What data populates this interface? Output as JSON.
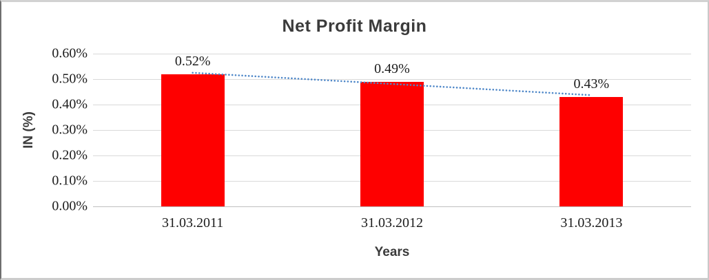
{
  "chart_data": {
    "type": "bar",
    "title": "Net Profit Margin",
    "xlabel": "Years",
    "ylabel": "IN (%)",
    "categories": [
      "31.03.2011",
      "31.03.2012",
      "31.03.2013"
    ],
    "values": [
      0.52,
      0.49,
      0.43
    ],
    "data_labels": [
      "0.52%",
      "0.49%",
      "0.43%"
    ],
    "yticks": [
      "0.00%",
      "0.10%",
      "0.20%",
      "0.30%",
      "0.40%",
      "0.50%",
      "0.60%"
    ],
    "ytick_values": [
      0.0,
      0.1,
      0.2,
      0.3,
      0.4,
      0.5,
      0.6
    ],
    "ylim": [
      0,
      0.6
    ],
    "grid": true,
    "legend": "none",
    "bar_color": "#fe0000",
    "gridline_color": "#d9d9d9",
    "axis_line_color": "#bfbfbf",
    "trendline": {
      "type": "linear",
      "style": "dotted",
      "color": "#4e87c8",
      "start_value": 0.525,
      "end_value": 0.437
    }
  }
}
